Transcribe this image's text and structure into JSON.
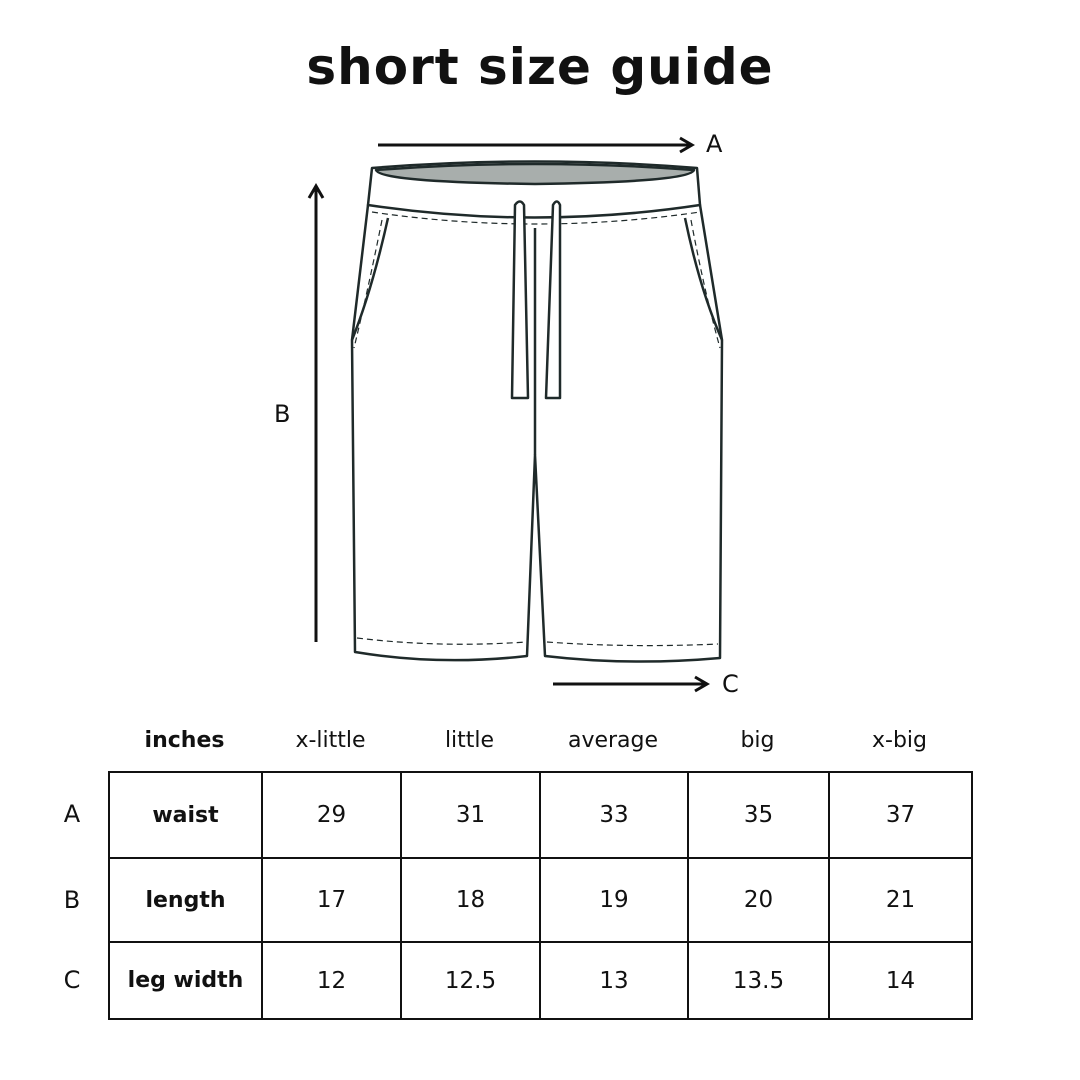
{
  "title": "short size guide",
  "diagram": {
    "label_a": "A",
    "label_b": "B",
    "label_c": "C",
    "outline_color": "#1f2a2a",
    "waistband_inner_color": "#a8aeac"
  },
  "table": {
    "unit": "inches",
    "columns": [
      "x-little",
      "little",
      "average",
      "big",
      "x-big"
    ],
    "rows": [
      {
        "key": "A",
        "name": "waist",
        "values": [
          "29",
          "31",
          "33",
          "35",
          "37"
        ]
      },
      {
        "key": "B",
        "name": "length",
        "values": [
          "17",
          "18",
          "19",
          "20",
          "21"
        ]
      },
      {
        "key": "C",
        "name": "leg width",
        "values": [
          "12",
          "12.5",
          "13",
          "13.5",
          "14"
        ]
      }
    ]
  }
}
